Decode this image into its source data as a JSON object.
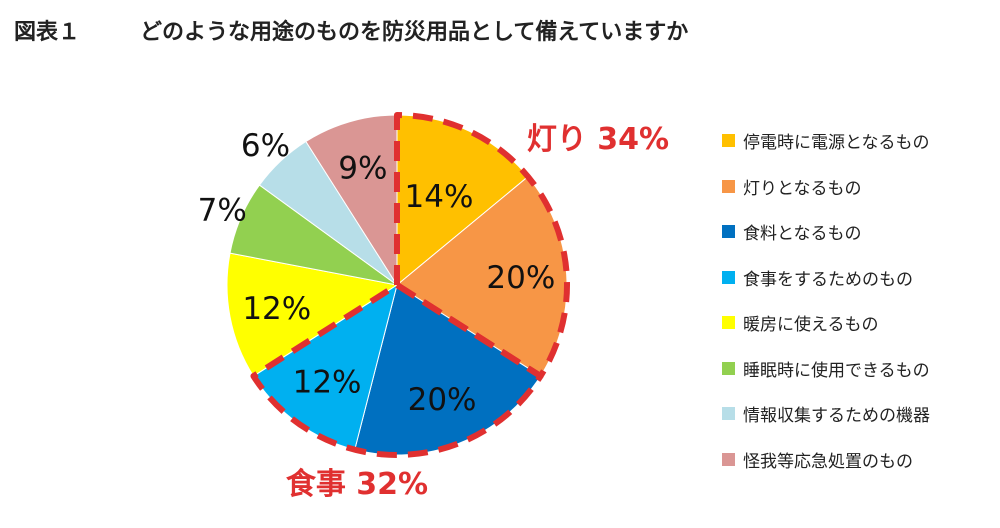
{
  "figure_label": "図表１",
  "title": "どのような用途のものを防災用品として備えていますか",
  "chart_data": {
    "type": "pie",
    "title": "どのような用途のものを防災用品として備えていますか",
    "start": "12 o'clock, clockwise",
    "slices": [
      {
        "label": "停電時に電源となるもの",
        "value": 14,
        "value_label": "14%",
        "color": "#FFC000"
      },
      {
        "label": "灯りとなるもの",
        "value": 20,
        "value_label": "20%",
        "color": "#F79646"
      },
      {
        "label": "食料となるもの",
        "value": 20,
        "value_label": "20%",
        "color": "#0070C0"
      },
      {
        "label": "食事をするためのもの",
        "value": 12,
        "value_label": "12%",
        "color": "#00B0F0"
      },
      {
        "label": "暖房に使えるもの",
        "value": 12,
        "value_label": "12%",
        "color": "#FFFF00"
      },
      {
        "label": "睡眠時に使用できるもの",
        "value": 7,
        "value_label": "7%",
        "color": "#92D050"
      },
      {
        "label": "情報収集するための機器",
        "value": 6,
        "value_label": "6%",
        "color": "#B7DEE8"
      },
      {
        "label": "怪我等応急処置のもの",
        "value": 9,
        "value_label": "9%",
        "color": "#DA9694"
      }
    ],
    "annotations": [
      {
        "text": "灯り 34%",
        "slices": [
          0,
          1
        ],
        "color": "#E03030"
      },
      {
        "text": "食事 32%",
        "slices": [
          2,
          3
        ],
        "color": "#E03030"
      }
    ],
    "legend_position": "right"
  }
}
